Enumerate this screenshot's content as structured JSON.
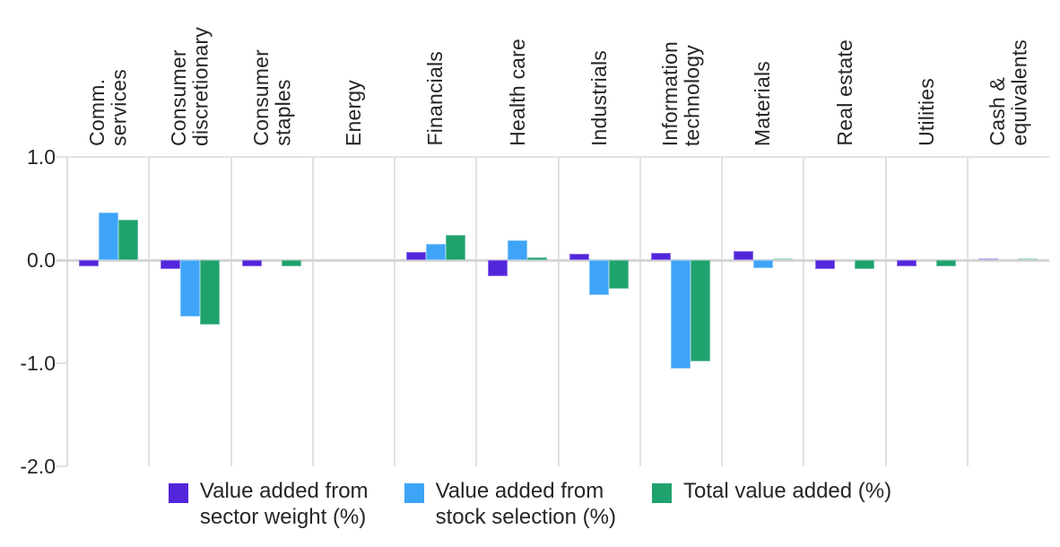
{
  "chart_data": {
    "type": "bar",
    "title": "",
    "categories": [
      "Comm.\nservices",
      "Consumer\ndiscretionary",
      "Consumer\nstaples",
      "Energy",
      "Financials",
      "Health care",
      "Industrials",
      "Information\ntechnology",
      "Materials",
      "Real estate",
      "Utilities",
      "Cash &\nequivalents"
    ],
    "series": [
      {
        "key": "sector-weight",
        "name": "Value added from\nsector weight (%)",
        "color": "#5326db",
        "values": [
          -0.06,
          -0.09,
          -0.06,
          0,
          0.08,
          -0.16,
          0.06,
          0.07,
          0.09,
          -0.09,
          -0.06,
          0.01
        ]
      },
      {
        "key": "stock-selection",
        "name": "Value added from\nstock selection (%)",
        "color": "#3ea4f7",
        "values": [
          0.46,
          -0.55,
          0,
          0,
          0.16,
          0.19,
          -0.34,
          -1.05,
          -0.08,
          0,
          0,
          0
        ]
      },
      {
        "key": "total-value-added",
        "name": "Total value added (%)",
        "color": "#1fa26e",
        "values": [
          0.39,
          -0.63,
          -0.06,
          0,
          0.24,
          0.03,
          -0.28,
          -0.98,
          0.01,
          -0.09,
          -0.06,
          0.01
        ]
      }
    ],
    "ylim": [
      -2.0,
      1.0
    ],
    "y_ticks": [
      1.0,
      0.0,
      -1.0,
      -2.0
    ],
    "y_tick_labels": [
      "1.0",
      "0.0",
      "-1.0",
      "-2.0"
    ],
    "legend_position": "bottom",
    "grid": {
      "zero_line": true,
      "top_boundary_line": true,
      "category_separators": true,
      "horizontal_gridlines": false
    },
    "colors": {
      "text": "#262626",
      "grid": "#e2e2e2",
      "zero_line": "#d5d5d5",
      "axis": "#dcdcdc",
      "background": "#ffffff"
    }
  }
}
